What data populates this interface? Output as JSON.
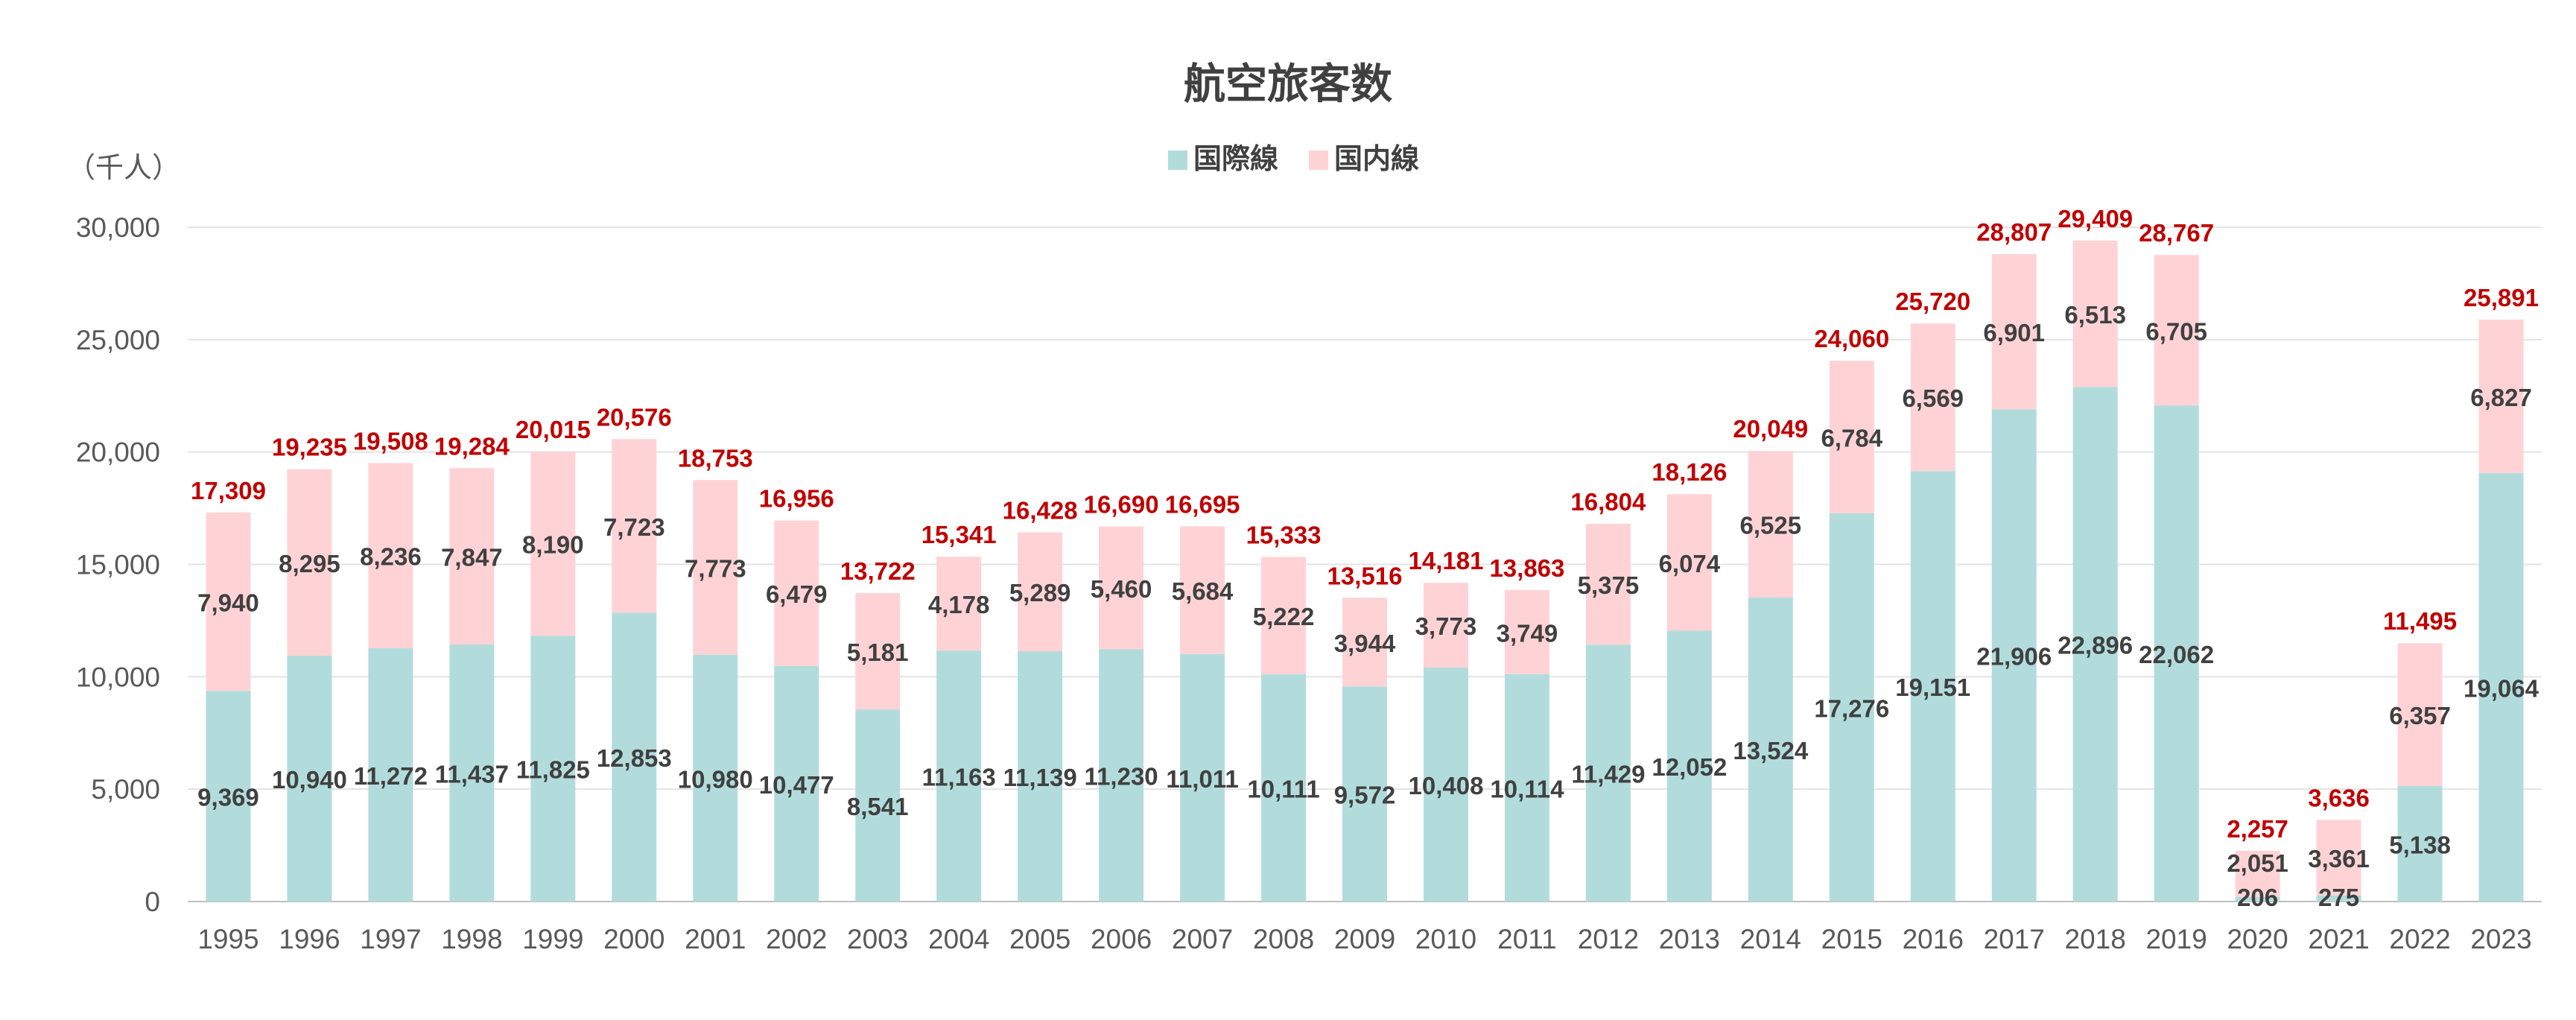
{
  "chart_data": {
    "type": "bar",
    "stacked": true,
    "title": "航空旅客数",
    "unit_label": "（千人）",
    "categories": [
      "1995",
      "1996",
      "1997",
      "1998",
      "1999",
      "2000",
      "2001",
      "2002",
      "2003",
      "2004",
      "2005",
      "2006",
      "2007",
      "2008",
      "2009",
      "2010",
      "2011",
      "2012",
      "2013",
      "2014",
      "2015",
      "2016",
      "2017",
      "2018",
      "2019",
      "2020",
      "2021",
      "2022",
      "2023"
    ],
    "series": [
      {
        "name": "国際線",
        "color": "#b2dcdc",
        "values": [
          9369,
          10940,
          11272,
          11437,
          11825,
          12853,
          10980,
          10477,
          8541,
          11163,
          11139,
          11230,
          11011,
          10111,
          9572,
          10408,
          10114,
          11429,
          12052,
          13524,
          17276,
          19151,
          21906,
          22896,
          22062,
          206,
          275,
          5138,
          19064
        ],
        "labels": [
          "9,369",
          "10,940",
          "11,272",
          "11,437",
          "11,825",
          "12,853",
          "10,980",
          "10,477",
          "8,541",
          "11,163",
          "11,139",
          "11,230",
          "11,011",
          "10,111",
          "9,572",
          "10,408",
          "10,114",
          "11,429",
          "12,052",
          "13,524",
          "17,276",
          "19,151",
          "21,906",
          "22,896",
          "22,062",
          "206",
          "275",
          "5,138",
          "19,064"
        ]
      },
      {
        "name": "国内線",
        "color": "#ffd3d6",
        "values": [
          7940,
          8295,
          8236,
          7847,
          8190,
          7723,
          7773,
          6479,
          5181,
          4178,
          5289,
          5460,
          5684,
          5222,
          3944,
          3773,
          3749,
          5375,
          6074,
          6525,
          6784,
          6569,
          6901,
          6513,
          6705,
          2051,
          3361,
          6357,
          6827
        ],
        "labels": [
          "7,940",
          "8,295",
          "8,236",
          "7,847",
          "8,190",
          "7,723",
          "7,773",
          "6,479",
          "5,181",
          "4,178",
          "5,289",
          "5,460",
          "5,684",
          "5,222",
          "3,944",
          "3,773",
          "3,749",
          "5,375",
          "6,074",
          "6,525",
          "6,784",
          "6,569",
          "6,901",
          "6,513",
          "6,705",
          "2,051",
          "3,361",
          "6,357",
          "6,827"
        ]
      }
    ],
    "totals": [
      17309,
      19235,
      19508,
      19284,
      20015,
      20576,
      18753,
      16956,
      13722,
      15341,
      16428,
      16690,
      16695,
      15333,
      13516,
      14181,
      13863,
      16804,
      18126,
      20049,
      24060,
      25720,
      28807,
      29409,
      28767,
      2257,
      3636,
      11495,
      25891
    ],
    "total_labels": [
      "17,309",
      "19,235",
      "19,508",
      "19,284",
      "20,015",
      "20,576",
      "18,753",
      "16,956",
      "13,722",
      "15,341",
      "16,428",
      "16,690",
      "16,695",
      "15,333",
      "13,516",
      "14,181",
      "13,863",
      "16,804",
      "18,126",
      "20,049",
      "24,060",
      "25,720",
      "28,807",
      "29,409",
      "28,767",
      "2,257",
      "3,636",
      "11,495",
      "25,891"
    ],
    "total_label_color": "#c00000",
    "ylim": [
      0,
      30000
    ],
    "yticks": [
      0,
      5000,
      10000,
      15000,
      20000,
      25000,
      30000
    ],
    "ytick_labels": [
      "0",
      "5,000",
      "10,000",
      "15,000",
      "20,000",
      "25,000",
      "30,000"
    ],
    "grid": true,
    "legend_position": "top-center"
  }
}
